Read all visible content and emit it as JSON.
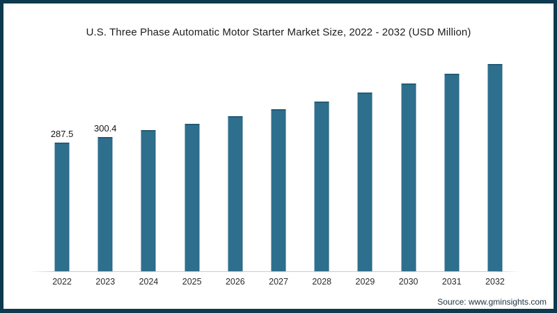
{
  "chart": {
    "title": "U.S. Three Phase Automatic Motor Starter Market Size, 2022 - 2032 (USD Million)",
    "source": "Source: www.gminsights.com"
  },
  "chart_data": {
    "type": "bar",
    "title": "U.S. Three Phase Automatic Motor Starter Market Size, 2022 - 2032 (USD Million)",
    "categories": [
      "2022",
      "2023",
      "2024",
      "2025",
      "2026",
      "2027",
      "2028",
      "2029",
      "2030",
      "2031",
      "2032"
    ],
    "values": [
      287.5,
      300.4,
      315,
      330,
      346,
      362,
      378.5,
      399.5,
      418.5,
      440,
      462.5
    ],
    "data_labels": [
      "287.5",
      "300.4",
      "",
      "",
      "",
      "",
      "",
      "",
      "",
      "",
      ""
    ],
    "xlabel": "",
    "ylabel": "",
    "ylim": [
      0,
      500
    ],
    "grid": false,
    "legend": false,
    "bar_color": "#2e6f8e",
    "frame_color": "#0d3a4e",
    "axis_line_color": "#cdcdcd",
    "source": "Source: www.gminsights.com"
  }
}
